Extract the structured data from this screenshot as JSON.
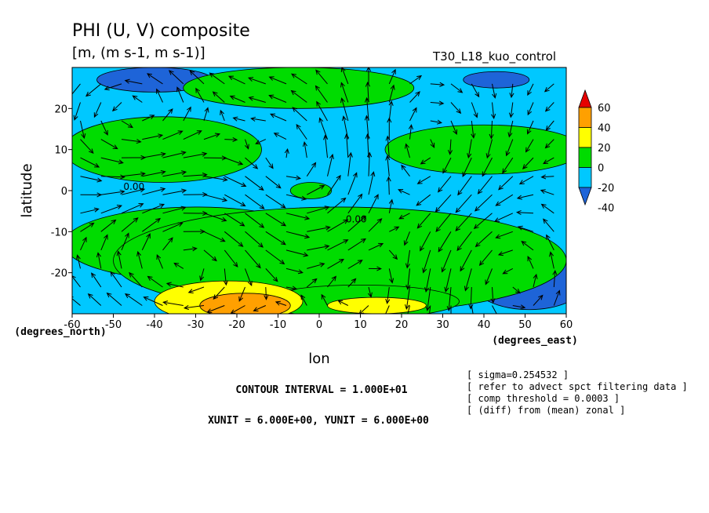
{
  "chart_data": {
    "type": "heatmap",
    "title": "PHI (U, V) composite",
    "subtitle": "[m, (m s-1, m s-1)]",
    "run_label": "T30_L18_kuo_control",
    "xlabel": "lon",
    "ylabel": "latitude",
    "x_unit_label": "(degrees_east)",
    "y_unit_label": "(degrees_north)",
    "xlim": [
      -60,
      60
    ],
    "ylim": [
      -30,
      30
    ],
    "x_ticks": [
      "-60",
      "-50",
      "-40",
      "-30",
      "-20",
      "-10",
      "0",
      "10",
      "20",
      "30",
      "40",
      "50",
      "60"
    ],
    "x_tick_values": [
      -60,
      -50,
      -40,
      -30,
      -20,
      -10,
      0,
      10,
      20,
      30,
      40,
      50,
      60
    ],
    "y_ticks": [
      "20",
      "10",
      "0",
      "-10",
      "-20"
    ],
    "y_tick_values": [
      20,
      10,
      0,
      -10,
      -20
    ],
    "colorbar": {
      "labels": [
        "60",
        "40",
        "20",
        "0",
        "-20",
        "-40"
      ],
      "levels": [
        -40,
        -20,
        0,
        20,
        40,
        60
      ],
      "colors": [
        "#1e64d8",
        "#00c8ff",
        "#00dc00",
        "#ffff00",
        "#ffa000",
        "#e60000"
      ]
    },
    "contour_labels": [
      {
        "text": "0.00",
        "lon": -45,
        "lat": 1
      },
      {
        "text": "0.00",
        "lon": 9,
        "lat": -7
      }
    ],
    "contour_interval_text": "CONTOUR INTERVAL = 1.000E+01",
    "vector_units_text": "XUNIT = 6.000E+00, YUNIT = 6.000E+00",
    "notes": [
      "[ sigma=0.254532 ]",
      "[ refer to advect spct filtering data ]",
      "[ comp threshold = 0.0003 ]",
      "[ (diff) from (mean) zonal ]"
    ],
    "field_regions": [
      {
        "level": -40,
        "shape": "ellipse",
        "lon": -40,
        "lat": 27,
        "rlon": 14,
        "rlat": 3
      },
      {
        "level": -40,
        "shape": "ellipse",
        "lon": 43,
        "lat": 27,
        "rlon": 8,
        "rlat": 2
      },
      {
        "level": -40,
        "shape": "ellipse",
        "lon": 51,
        "lat": -22,
        "rlon": 14,
        "rlat": 7
      },
      {
        "level": 0,
        "shape": "ellipse",
        "lon": -5,
        "lat": 25,
        "rlon": 28,
        "rlat": 5
      },
      {
        "level": 0,
        "shape": "ellipse",
        "lon": -38,
        "lat": 10,
        "rlon": 24,
        "rlat": 8
      },
      {
        "level": 0,
        "shape": "ellipse",
        "lon": 40,
        "lat": 10,
        "rlon": 24,
        "rlat": 6
      },
      {
        "level": 0,
        "shape": "ellipse",
        "lon": -2,
        "lat": 0,
        "rlon": 5,
        "rlat": 2
      },
      {
        "level": 0,
        "shape": "ellipse",
        "lon": -30,
        "lat": -13,
        "rlon": 32,
        "rlat": 9
      },
      {
        "level": 0,
        "shape": "ellipse",
        "lon": 5,
        "lat": -17,
        "rlon": 55,
        "rlat": 13
      },
      {
        "level": 0,
        "shape": "ellipse",
        "lon": 10,
        "lat": -27,
        "rlon": 24,
        "rlat": 4
      },
      {
        "level": 20,
        "shape": "ellipse",
        "lon": -22,
        "lat": -27,
        "rlon": 18,
        "rlat": 5
      },
      {
        "level": 20,
        "shape": "ellipse",
        "lon": 14,
        "lat": -28,
        "rlon": 12,
        "rlat": 2
      },
      {
        "level": 40,
        "shape": "ellipse",
        "lon": -18,
        "lat": -28,
        "rlon": 11,
        "rlat": 3
      }
    ]
  }
}
